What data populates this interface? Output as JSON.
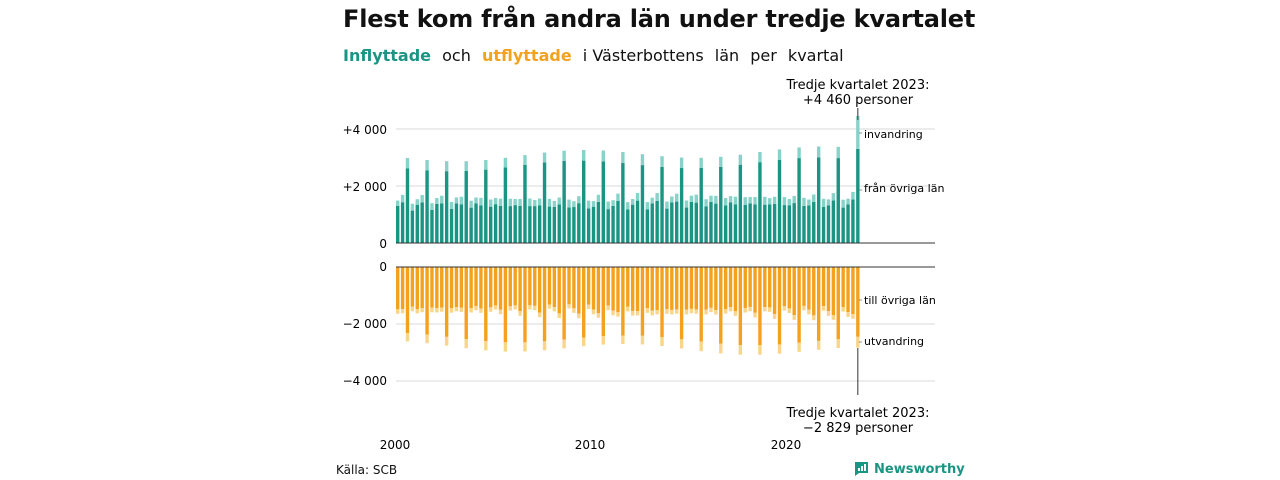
{
  "title": "Flest kom från andra län under tredje kvartalet",
  "subtitle": {
    "inflyttade": "Inflyttade",
    "och": "och",
    "utflyttade": "utflyttade",
    "rest": [
      "i Västerbottens",
      "län",
      "per",
      "kvartal"
    ]
  },
  "source": "Källa: SCB",
  "brand": "Newsworthy",
  "colors": {
    "in_dark": "#1a9483",
    "in_light": "#88d3c9",
    "out_dark": "#f4a21e",
    "out_light": "#f9d58a",
    "axis": "#333333",
    "grid": "#d9d9d9"
  },
  "chart_data": {
    "type": "bar",
    "stacked": true,
    "x_start": "2000 Q1",
    "x_end": "2023 Q3",
    "x_ticks": [
      "2000",
      "2010",
      "2020"
    ],
    "top_panel": {
      "y_ticks": [
        "+4 000",
        "+2 000",
        "0"
      ],
      "ylim": [
        0,
        4500
      ],
      "series": [
        {
          "name": "från övriga län",
          "pattern_q1_q4": [
            1300,
            1350,
            2650,
            1200
          ],
          "last_quarter_value": 3300
        },
        {
          "name": "invandring",
          "pattern_q1_q4": [
            200,
            250,
            350,
            250
          ],
          "last_quarter_value": 1160
        }
      ]
    },
    "bottom_panel": {
      "y_ticks": [
        "0",
        "−2 000",
        "−4 000"
      ],
      "ylim": [
        -4500,
        0
      ],
      "series": [
        {
          "name": "till övriga län",
          "pattern_q1_q4": [
            -1400,
            -1500,
            -2450,
            -1350
          ],
          "last_quarter_value": -2450
        },
        {
          "name": "utvandring",
          "pattern_q1_q4": [
            -150,
            -150,
            -300,
            -150
          ],
          "last_quarter_value": -379
        }
      ]
    },
    "annotations": [
      {
        "line1": "Tredje kvartalet 2023:",
        "line2": "+4 460 personer"
      },
      {
        "line1": "Tredje kvartalet 2023:",
        "line2": "−2 829 personer"
      }
    ]
  }
}
